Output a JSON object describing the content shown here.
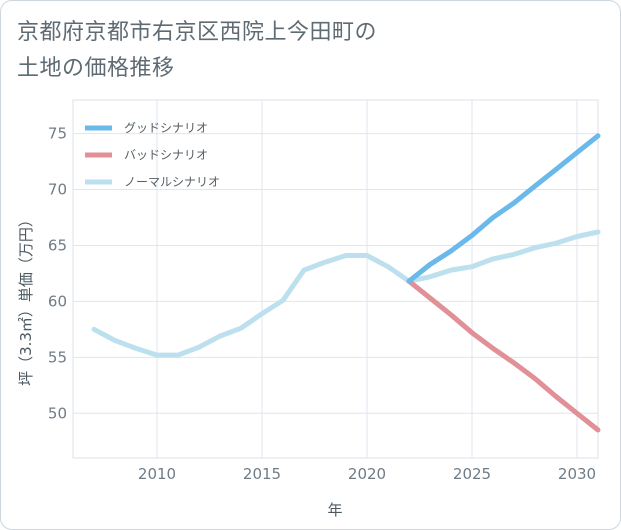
{
  "chart_data": {
    "type": "line",
    "title": "京都府京都市右京区西院上今田町の土地の価格推移",
    "title_lines": [
      "京都府京都市右京区西院上今田町の",
      "土地の価格推移"
    ],
    "xlabel": "年",
    "ylabel": "坪（3.3㎡）単価（万円）",
    "xlim": [
      2006,
      2031
    ],
    "ylim": [
      46,
      78
    ],
    "x_ticks": [
      2010,
      2015,
      2020,
      2025,
      2030
    ],
    "y_ticks": [
      50,
      55,
      60,
      65,
      70,
      75
    ],
    "grid": true,
    "legend_position": "top-left",
    "series": [
      {
        "name": "グッドシナリオ",
        "color": "#6bb8ea",
        "x": [
          2022,
          2023,
          2024,
          2025,
          2026,
          2027,
          2028,
          2029,
          2030,
          2031
        ],
        "values": [
          61.8,
          63.3,
          64.5,
          65.9,
          67.5,
          68.8,
          70.3,
          71.8,
          73.3,
          74.8
        ]
      },
      {
        "name": "バッドシナリオ",
        "color": "#e09096",
        "x": [
          2022,
          2023,
          2024,
          2025,
          2026,
          2027,
          2028,
          2029,
          2030,
          2031
        ],
        "values": [
          61.8,
          60.3,
          58.8,
          57.2,
          55.8,
          54.5,
          53.1,
          51.5,
          50.0,
          48.5
        ]
      },
      {
        "name": "ノーマルシナリオ",
        "color": "#bde0ee",
        "x": [
          2007,
          2008,
          2009,
          2010,
          2011,
          2012,
          2013,
          2014,
          2015,
          2016,
          2017,
          2018,
          2019,
          2020,
          2021,
          2022,
          2023,
          2024,
          2025,
          2026,
          2027,
          2028,
          2029,
          2030,
          2031
        ],
        "values": [
          57.5,
          56.5,
          55.8,
          55.2,
          55.2,
          55.9,
          56.9,
          57.6,
          58.9,
          60.1,
          62.8,
          63.5,
          64.1,
          64.1,
          63.1,
          61.8,
          62.2,
          62.8,
          63.1,
          63.8,
          64.2,
          64.8,
          65.2,
          65.8,
          66.2
        ]
      }
    ]
  }
}
